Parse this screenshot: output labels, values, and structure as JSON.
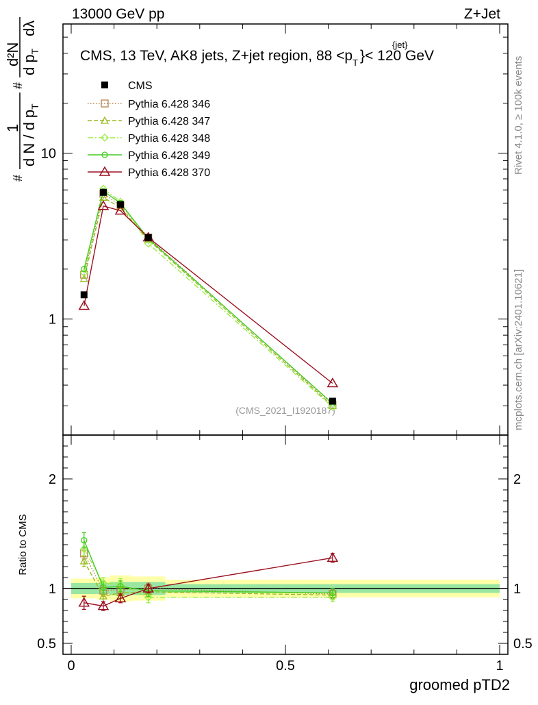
{
  "header": {
    "left": "13000 GeV pp",
    "right": "Z+Jet"
  },
  "side_labels": {
    "rivet": "Rivet 4.1.0, ≥ 100k events",
    "mcplots": "mcplots.cern.ch [arXiv:2401.10621]"
  },
  "chart_data": {
    "type": "line",
    "title_main": "CMS, 13 TeV, AK8 jets, Z+jet region, 88 <p",
    "title_sup": "{jet}",
    "title_sub": "T",
    "title_tail": "}< 120 GeV",
    "watermark": "(CMS_2021_I1920187)",
    "ylabel_main": {
      "hash1": "#",
      "one": "1",
      "hash2": "#",
      "dn": "d N / d p",
      "dn_sub": "T",
      "d2n": "d²N",
      "dpt": "d p",
      "dpt_sub": "T",
      "dlambda": "dλ"
    },
    "ylabel_ratio": "Ratio to CMS",
    "xlabel": "groomed pTD2",
    "x_range": [
      0,
      1
    ],
    "y_range_main": [
      0.2,
      60
    ],
    "y_range_ratio": [
      0.4,
      2.4
    ],
    "x_ticks": [
      "0",
      "0.5",
      "1"
    ],
    "x_tick_values": [
      0,
      0.5,
      1
    ],
    "y_ticks_main": [
      "1",
      "10"
    ],
    "y_tick_values_main": [
      1,
      10
    ],
    "y_ticks_ratio": [
      "0.5",
      "1",
      "2"
    ],
    "y_tick_values_ratio": [
      0.5,
      1,
      2
    ],
    "bin_edges": [
      0,
      0.06,
      0.09,
      0.14,
      0.22,
      1.0
    ],
    "x": [
      0.03,
      0.075,
      0.115,
      0.18,
      0.61
    ],
    "cms": {
      "name": "CMS",
      "values": [
        1.4,
        5.8,
        4.9,
        3.1,
        0.32
      ],
      "band_inner": [
        0.05,
        0.05,
        0.06,
        0.06,
        0.04
      ],
      "band_outer": [
        0.09,
        0.1,
        0.12,
        0.11,
        0.08
      ]
    },
    "series": [
      {
        "name": "Pythia 6.428 346",
        "color": "#b5834a",
        "marker": "square",
        "dash": "1.5,2.5",
        "values": [
          1.85,
          5.7,
          4.85,
          3.1,
          0.305
        ],
        "ratio": [
          1.32,
          0.98,
          0.99,
          1.0,
          0.95
        ],
        "ratio_err": [
          0.05,
          0.05,
          0.05,
          0.05,
          0.04
        ]
      },
      {
        "name": "Pythia 6.428 347",
        "color": "#99bb22",
        "marker": "triangle",
        "dash": "6,3",
        "values": [
          1.75,
          5.4,
          4.7,
          3.0,
          0.3
        ],
        "ratio": [
          1.25,
          0.93,
          0.96,
          0.97,
          0.94
        ],
        "ratio_err": [
          0.05,
          0.05,
          0.05,
          0.05,
          0.04
        ]
      },
      {
        "name": "Pythia 6.428 348",
        "color": "#99ee44",
        "marker": "diamond",
        "dash": "8,3,2,3",
        "values": [
          1.9,
          6.1,
          5.1,
          2.85,
          0.295
        ],
        "ratio": [
          1.36,
          1.05,
          1.04,
          0.92,
          0.92
        ],
        "ratio_err": [
          0.06,
          0.05,
          0.05,
          0.05,
          0.04
        ]
      },
      {
        "name": "Pythia 6.428 349",
        "color": "#44cc22",
        "marker": "circle",
        "dash": "",
        "values": [
          2.0,
          5.9,
          5.0,
          3.05,
          0.31
        ],
        "ratio": [
          1.44,
          1.01,
          1.02,
          0.98,
          0.96
        ],
        "ratio_err": [
          0.07,
          0.05,
          0.05,
          0.05,
          0.04
        ]
      },
      {
        "name": "Pythia 6.428 370",
        "color": "#9b1020",
        "marker": "triangle-open",
        "dash": "",
        "values": [
          1.2,
          4.8,
          4.5,
          3.1,
          0.41
        ],
        "ratio": [
          0.87,
          0.84,
          0.91,
          1.0,
          1.28
        ],
        "ratio_err": [
          0.06,
          0.04,
          0.04,
          0.04,
          0.04
        ]
      }
    ]
  }
}
